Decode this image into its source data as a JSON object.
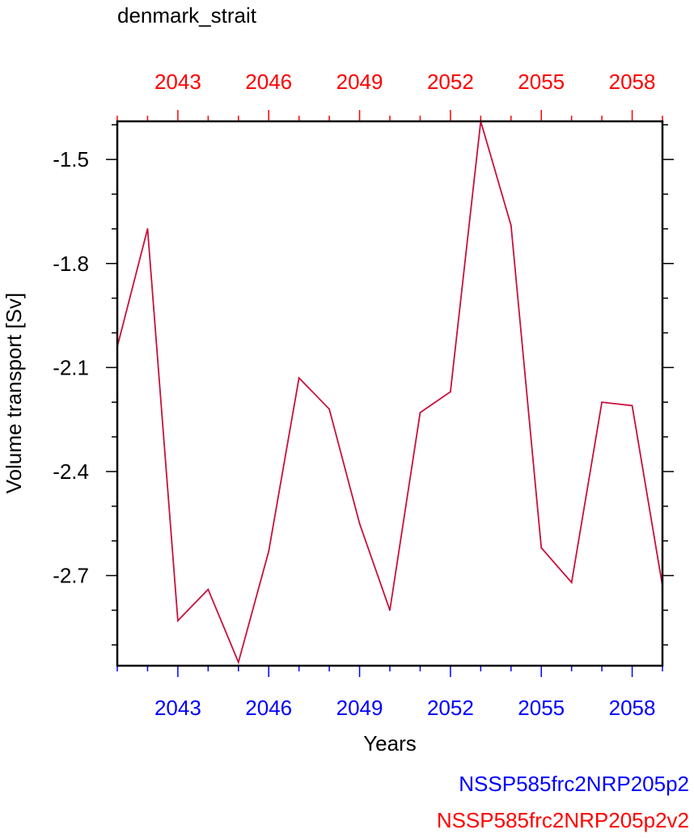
{
  "chart_data": {
    "type": "line",
    "title": "denmark_strait",
    "xlabel": "Years",
    "ylabel": "Volume transport [Sv]",
    "x": [
      2041,
      2042,
      2043,
      2044,
      2045,
      2046,
      2047,
      2048,
      2049,
      2050,
      2051,
      2052,
      2053,
      2054,
      2055,
      2056,
      2057,
      2058,
      2059
    ],
    "series": [
      {
        "values": [
          -2.04,
          -1.7,
          -2.83,
          -2.74,
          -2.95,
          -2.63,
          -2.13,
          -2.22,
          -2.55,
          -2.8,
          -2.23,
          -2.17,
          -1.39,
          -1.69,
          -2.62,
          -2.72,
          -2.2,
          -2.21,
          -2.73
        ],
        "color": "#c8103c"
      }
    ],
    "xlim": [
      2041,
      2059
    ],
    "ylim": [
      -2.96,
      -1.39
    ],
    "x_ticks": [
      "2043",
      "2046",
      "2049",
      "2052",
      "2055",
      "2058"
    ],
    "y_ticks": [
      "-1.5",
      "-1.8",
      "-2.1",
      "-2.4",
      "-2.7"
    ],
    "legend": [
      "NSSP585frc2NRP205p2",
      "NSSP585frc2NRP205p2v2"
    ],
    "colors": {
      "bottom_axis": "#0000ff",
      "top_axis": "#ff0000",
      "line": "#c8103c",
      "frame": "#000000"
    }
  }
}
